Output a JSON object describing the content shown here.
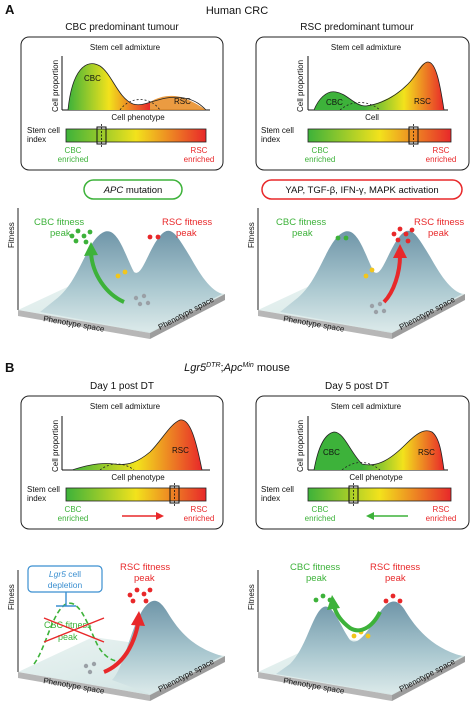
{
  "colors": {
    "cbc_green": "#3db23a",
    "rsc_red": "#e8282a",
    "gradient_yellow": "#f2e21c",
    "depletion_blue": "#3b8fd0",
    "landscape_teal": "#6f95a8"
  },
  "panel_a": {
    "letter": "A",
    "title": "Human CRC",
    "left": {
      "heading": "CBC predominant tumour",
      "admixture_label": "Stem cell admixture",
      "y_axis": "Cell proportion",
      "x_axis": "Cell phenotype",
      "cbc_label": "CBC",
      "rsc_label": "RSC",
      "index_label_line1": "Stem cell",
      "index_label_line2": "index",
      "cbc_enriched_line1": "CBC",
      "cbc_enriched_line2": "enriched",
      "rsc_enriched_line1": "RSC",
      "rsc_enriched_line2": "enriched",
      "trigger_gene": "APC",
      "trigger_rest": " mutation",
      "cbc_peak_line1": "CBC fitness",
      "cbc_peak_line2": "peak",
      "rsc_peak_line1": "RSC fitness",
      "rsc_peak_line2": "peak",
      "fitness_axis": "Fitness",
      "phenotype_front": "Phenotype space",
      "phenotype_side": "Phenotype space"
    },
    "right": {
      "heading": "RSC predominant tumour",
      "admixture_label": "Stem cell admixture",
      "y_axis": "Cell proportion",
      "x_axis": "Cell",
      "cbc_label": "CBC",
      "rsc_label": "RSC",
      "index_label_line1": "Stem cell",
      "index_label_line2": "index",
      "cbc_enriched_line1": "CBC",
      "cbc_enriched_line2": "enriched",
      "rsc_enriched_line1": "RSC",
      "rsc_enriched_line2": "enriched",
      "trigger_text": "YAP, TGF-β, IFN-γ, MAPK activation",
      "cbc_peak_line1": "CBC fitness",
      "cbc_peak_line2": "peak",
      "rsc_peak_line1": "RSC fitness",
      "rsc_peak_line2": "peak",
      "fitness_axis": "Fitness",
      "phenotype_front": "Phenotype space",
      "phenotype_side": "Phenotype space"
    }
  },
  "panel_b": {
    "letter": "B",
    "title_gene1": "Lgr5",
    "title_sup1": "DTR",
    "title_sep": ";",
    "title_gene2": "Apc",
    "title_sup2": "Min",
    "title_rest": " mouse",
    "left": {
      "heading": "Day 1 post DT",
      "admixture_label": "Stem cell admixture",
      "y_axis": "Cell proportion",
      "x_axis": "Cell phenotype",
      "rsc_label": "RSC",
      "index_label_line1": "Stem cell",
      "index_label_line2": "index",
      "cbc_enriched_line1": "CBC",
      "cbc_enriched_line2": "enriched",
      "rsc_enriched_line1": "RSC",
      "rsc_enriched_line2": "enriched",
      "depletion_gene": "Lgr5",
      "depletion_rest": " cell",
      "depletion_line2": "depletion",
      "cbc_peak_line1": "CBC fitness",
      "cbc_peak_line2": "peak",
      "rsc_peak_line1": "RSC fitness",
      "rsc_peak_line2": "peak",
      "fitness_axis": "Fitness",
      "phenotype_front": "Phenotype space",
      "phenotype_side": "Phenotype space"
    },
    "right": {
      "heading": "Day 5 post DT",
      "admixture_label": "Stem cell admixture",
      "y_axis": "Cell proportion",
      "x_axis": "Cell phenotype",
      "cbc_label": "CBC",
      "rsc_label": "RSC",
      "index_label_line1": "Stem cell",
      "index_label_line2": "index",
      "cbc_enriched_line1": "CBC",
      "cbc_enriched_line2": "enriched",
      "rsc_enriched_line1": "RSC",
      "rsc_enriched_line2": "enriched",
      "cbc_peak_line1": "CBC fitness",
      "cbc_peak_line2": "peak",
      "rsc_peak_line1": "RSC fitness",
      "rsc_peak_line2": "peak",
      "fitness_axis": "Fitness",
      "phenotype_front": "Phenotype space",
      "phenotype_side": "Phenotype space"
    }
  }
}
